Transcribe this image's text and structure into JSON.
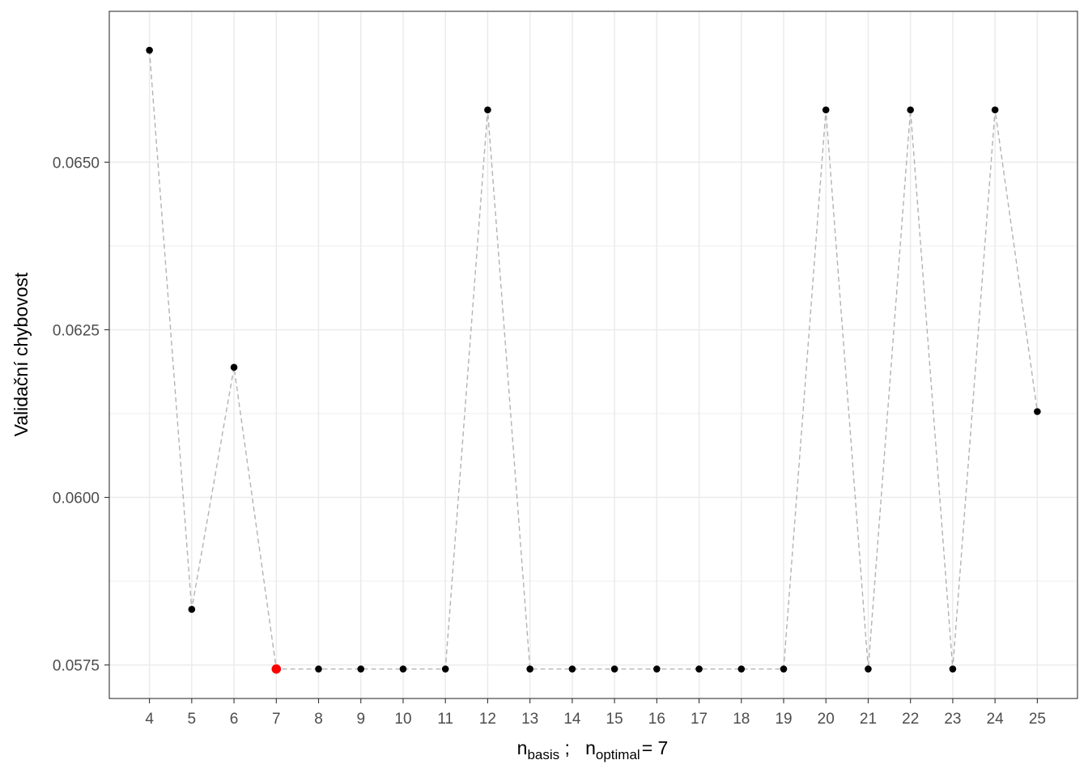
{
  "chart_data": {
    "type": "scatter",
    "ylabel": "Validační chybovost",
    "xlabel": {
      "main": "n",
      "main_sub": "basis",
      "separator": " ;   ",
      "opt": "n",
      "opt_sub": "optimal",
      "opt_value": "= 7"
    },
    "xlim": [
      3.05,
      25.95
    ],
    "ylim": [
      0.057,
      0.06725
    ],
    "x_ticks": [
      4,
      5,
      6,
      7,
      8,
      9,
      10,
      11,
      12,
      13,
      14,
      15,
      16,
      17,
      18,
      19,
      20,
      21,
      22,
      23,
      24,
      25
    ],
    "y_ticks": [
      0.0575,
      0.06,
      0.0625,
      0.065
    ],
    "y_tick_labels": [
      "0.0575",
      "0.0600",
      "0.0625",
      "0.0650"
    ],
    "grid": true,
    "connector": "dashed",
    "series": [
      {
        "x": [
          4,
          5,
          6,
          7,
          8,
          9,
          10,
          11,
          12,
          13,
          14,
          15,
          16,
          17,
          18,
          19,
          20,
          21,
          22,
          23,
          24,
          25
        ],
        "y": [
          0.06667,
          0.05833,
          0.06194,
          0.05744,
          0.05744,
          0.05744,
          0.05744,
          0.05744,
          0.06578,
          0.05744,
          0.05744,
          0.05744,
          0.05744,
          0.05744,
          0.05744,
          0.05744,
          0.06578,
          0.05744,
          0.06578,
          0.05744,
          0.06578,
          0.06128
        ]
      }
    ],
    "highlight": {
      "x": 7,
      "y": 0.05744
    },
    "colors": {
      "point": "#000000",
      "highlight": "#ff0000",
      "line": "#b3b3b3",
      "grid": "#ebebeb",
      "panel_border": "#333333"
    }
  }
}
